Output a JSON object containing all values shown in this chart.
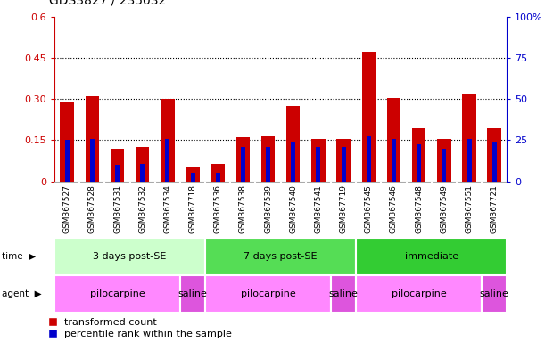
{
  "title": "GDS3827 / 235032",
  "samples": [
    "GSM367527",
    "GSM367528",
    "GSM367531",
    "GSM367532",
    "GSM367534",
    "GSM367718",
    "GSM367536",
    "GSM367538",
    "GSM367539",
    "GSM367540",
    "GSM367541",
    "GSM367719",
    "GSM367545",
    "GSM367546",
    "GSM367548",
    "GSM367549",
    "GSM367551",
    "GSM367721"
  ],
  "transformed_count": [
    0.29,
    0.31,
    0.12,
    0.125,
    0.3,
    0.055,
    0.065,
    0.16,
    0.165,
    0.275,
    0.155,
    0.155,
    0.475,
    0.305,
    0.195,
    0.155,
    0.32,
    0.195
  ],
  "percentile_rank_scaled": [
    0.15,
    0.155,
    0.06,
    0.065,
    0.155,
    0.03,
    0.03,
    0.125,
    0.125,
    0.145,
    0.125,
    0.125,
    0.165,
    0.155,
    0.135,
    0.12,
    0.155,
    0.145
  ],
  "ylim_left": [
    0,
    0.6
  ],
  "ylim_right": [
    0,
    100
  ],
  "yticks_left": [
    0,
    0.15,
    0.3,
    0.45,
    0.6
  ],
  "yticks_right": [
    0,
    25,
    50,
    75,
    100
  ],
  "ytick_labels_left": [
    "0",
    "0.15",
    "0.30",
    "0.45",
    "0.6"
  ],
  "ytick_labels_right": [
    "0",
    "25",
    "50",
    "75",
    "100%"
  ],
  "bar_color_red": "#cc0000",
  "bar_color_blue": "#0000cc",
  "hlines": [
    0.15,
    0.3,
    0.45
  ],
  "time_groups": [
    {
      "label": "3 days post-SE",
      "start": 0,
      "end": 6,
      "color": "#ccffcc"
    },
    {
      "label": "7 days post-SE",
      "start": 6,
      "end": 12,
      "color": "#55dd55"
    },
    {
      "label": "immediate",
      "start": 12,
      "end": 18,
      "color": "#33cc33"
    }
  ],
  "agent_groups": [
    {
      "label": "pilocarpine",
      "start": 0,
      "end": 5,
      "color": "#ff88ff"
    },
    {
      "label": "saline",
      "start": 5,
      "end": 6,
      "color": "#dd55dd"
    },
    {
      "label": "pilocarpine",
      "start": 6,
      "end": 11,
      "color": "#ff88ff"
    },
    {
      "label": "saline",
      "start": 11,
      "end": 12,
      "color": "#dd55dd"
    },
    {
      "label": "pilocarpine",
      "start": 12,
      "end": 17,
      "color": "#ff88ff"
    },
    {
      "label": "saline",
      "start": 17,
      "end": 18,
      "color": "#dd55dd"
    }
  ],
  "legend_red_label": "transformed count",
  "legend_blue_label": "percentile rank within the sample",
  "bar_width": 0.55,
  "blue_bar_width": 0.18,
  "tick_label_fontsize": 6.5,
  "axis_color_left": "#cc0000",
  "axis_color_right": "#0000cc",
  "title_fontsize": 10,
  "xtick_bg_color": "#cccccc",
  "xtick_sep_color": "#ffffff",
  "time_label": "time",
  "agent_label": "agent"
}
